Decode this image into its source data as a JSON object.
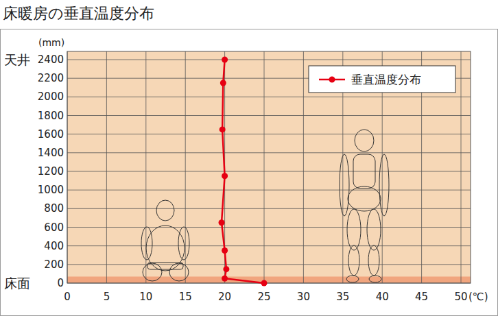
{
  "chart_data": {
    "type": "line",
    "title": "床暖房の垂直温度分布",
    "x_label": "(℃)",
    "y_label": "(mm)",
    "x": [
      25,
      20,
      20.2,
      20,
      19.6,
      20,
      19.7,
      19.8,
      20
    ],
    "series": [
      {
        "name": "垂直温度分布",
        "color": "#e60012",
        "marker": "circle",
        "line_style": "solid",
        "values": [
          0,
          50,
          150,
          350,
          650,
          1150,
          1650,
          2150,
          2400
        ]
      }
    ],
    "xlim": [
      0,
      50
    ],
    "ylim": [
      0,
      2400
    ],
    "xticks": [
      0,
      5,
      10,
      15,
      20,
      25,
      30,
      35,
      40,
      45,
      50
    ],
    "yticks": [
      0,
      200,
      400,
      600,
      800,
      1000,
      1200,
      1400,
      1600,
      1800,
      2000,
      2200,
      2400
    ],
    "grid": true,
    "legend": "top-right",
    "annotations": [
      {
        "text": "天井",
        "y": 2400
      },
      {
        "text": "床面",
        "y": 0
      }
    ],
    "floor_band": [
      0,
      70
    ]
  }
}
